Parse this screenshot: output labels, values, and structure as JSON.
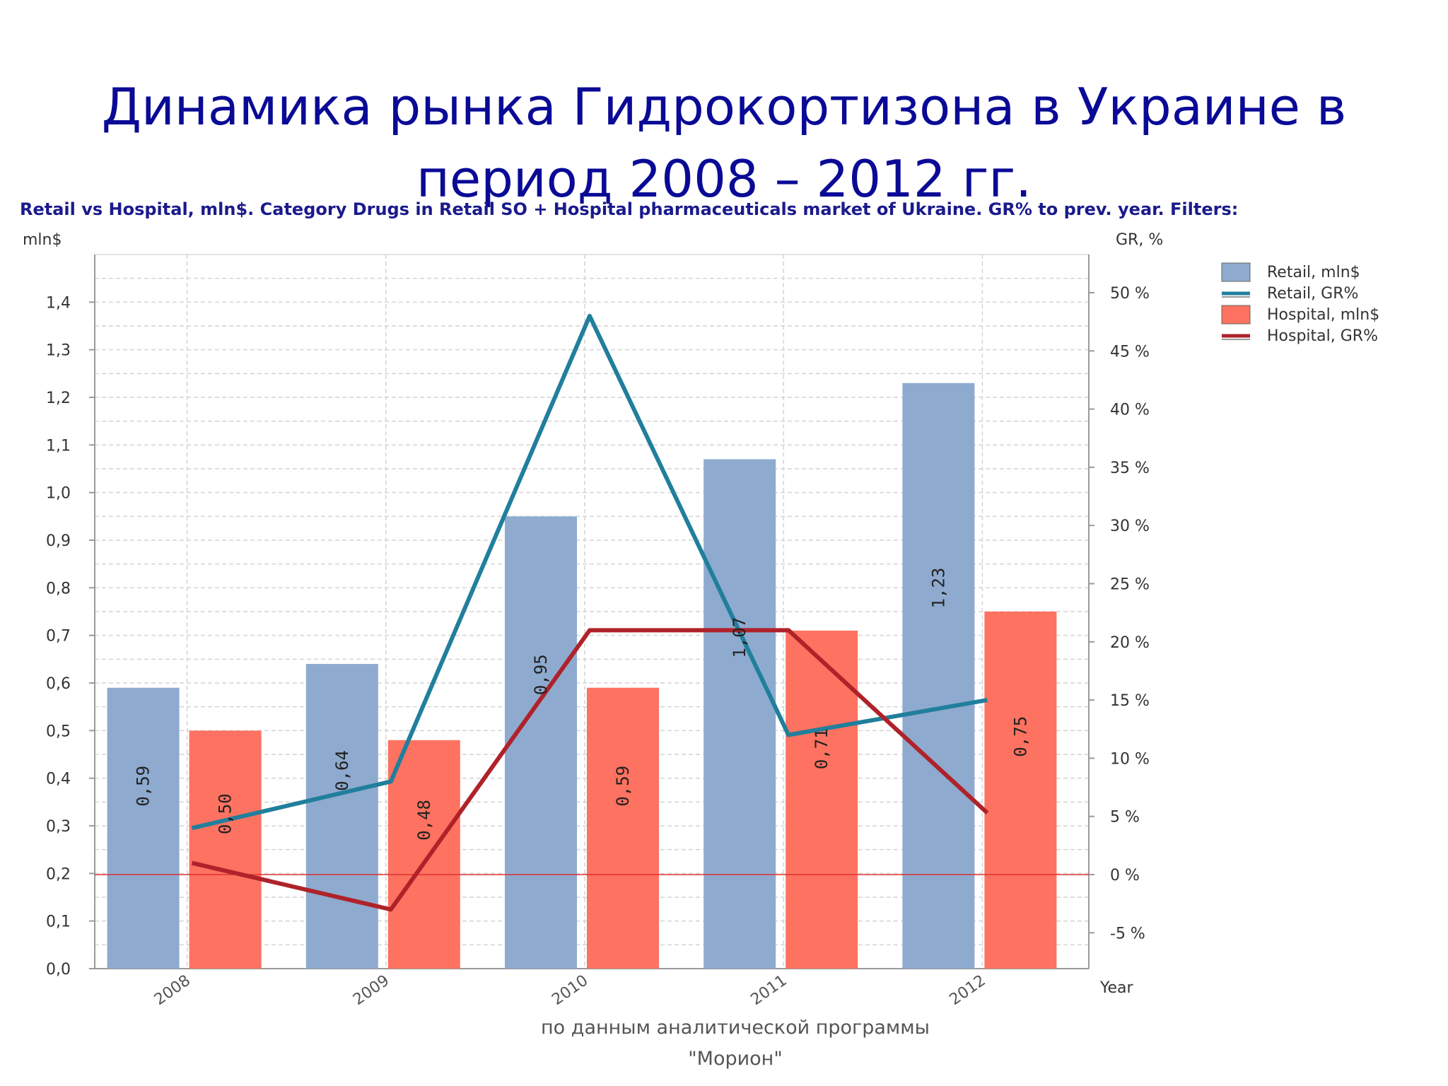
{
  "slide": {
    "title_line1": "Динамика рынка Гидрокортизона в Украине в",
    "title_line2": "период 2008 – 2012 гг.",
    "source_line1": "по данным аналитической программы",
    "source_line2": "\"Морион\""
  },
  "chart_data": {
    "type": "bar",
    "title": "Retail vs Hospital, mln$. Category Drugs in Retail SO + Hospital pharmaceuticals market of Ukraine. GR% to prev. year. Filters:",
    "ylabel": "mln$",
    "y2label": "GR, %",
    "xlabel": "Year",
    "categories": [
      "2008",
      "2009",
      "2010",
      "2011",
      "2012"
    ],
    "ylim": [
      0,
      1.4
    ],
    "y_ticks": [
      "0,0",
      "0,1",
      "0,2",
      "0,3",
      "0,4",
      "0,5",
      "0,6",
      "0,7",
      "0,8",
      "0,9",
      "1,0",
      "1,1",
      "1,2",
      "1,3",
      "1,4"
    ],
    "y2lim": [
      -10,
      52
    ],
    "y2_ticks": [
      "-5 %",
      "0 %",
      "5 %",
      "10 %",
      "15 %",
      "20 %",
      "25 %",
      "30 %",
      "35 %",
      "40 %",
      "45 %",
      "50 %"
    ],
    "series": [
      {
        "name": "Retail, mln$",
        "kind": "bar",
        "color": "#8eaacf",
        "values": [
          0.59,
          0.64,
          0.95,
          1.07,
          1.23
        ],
        "labels": [
          "0,59",
          "0,64",
          "0,95",
          "1,07",
          "1,23"
        ]
      },
      {
        "name": "Hospital, mln$",
        "kind": "bar",
        "color": "#fd7260",
        "values": [
          0.5,
          0.48,
          0.59,
          0.71,
          0.75
        ],
        "labels": [
          "0,50",
          "0,48",
          "0,59",
          "0,71",
          "0,75"
        ]
      },
      {
        "name": "Retail, GR%",
        "kind": "line",
        "axis": "y2",
        "color": "#217f9c",
        "values": [
          4.0,
          8.0,
          48.0,
          12.0,
          15.0
        ]
      },
      {
        "name": "Hospital, GR%",
        "kind": "line",
        "axis": "y2",
        "color": "#b0222a",
        "values": [
          1.0,
          -3.0,
          21.0,
          21.0,
          5.3
        ]
      }
    ],
    "legend_entries": [
      "Retail, mln$",
      "Retail, GR%",
      "Hospital, mln$",
      "Hospital, GR%"
    ],
    "legend_position": "top-right",
    "grid": true,
    "zero_line_color": "#e03030"
  }
}
